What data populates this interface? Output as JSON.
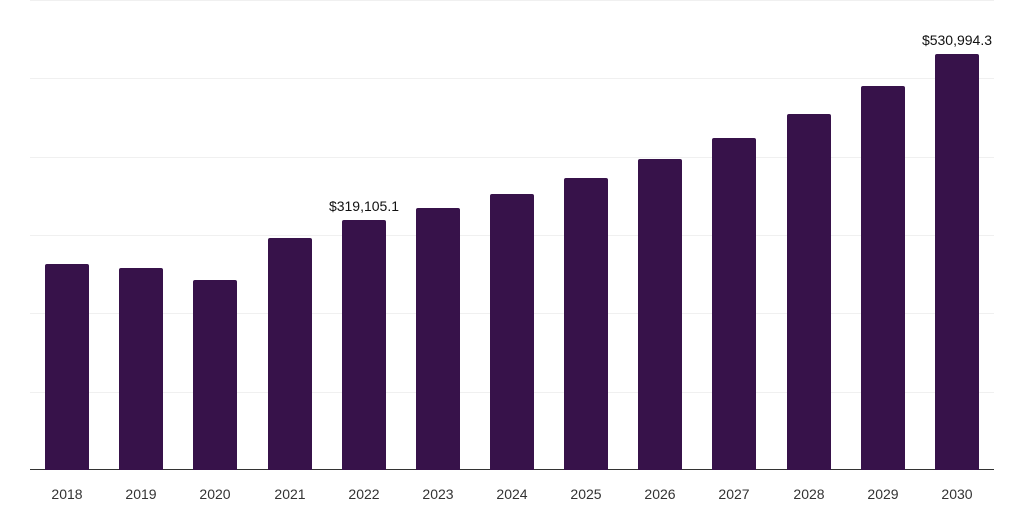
{
  "chart_data": {
    "type": "bar",
    "title": "",
    "xlabel": "",
    "ylabel": "",
    "categories": [
      "2018",
      "2019",
      "2020",
      "2021",
      "2022",
      "2023",
      "2024",
      "2025",
      "2026",
      "2027",
      "2028",
      "2029",
      "2030"
    ],
    "values": [
      263500,
      258400,
      243000,
      296800,
      319105.1,
      333900,
      351800,
      372300,
      396600,
      423500,
      454200,
      490000,
      530994.3
    ],
    "annotations": [
      {
        "category": "2022",
        "label": "$319,105.1"
      },
      {
        "category": "2030",
        "label": "$530,994.3"
      }
    ],
    "ylim": [
      0,
      600000
    ],
    "gridlines": [
      0,
      100000,
      200000,
      300000,
      400000,
      500000,
      600000
    ],
    "grid": true,
    "y_tick_labels_visible": false,
    "legend": null,
    "bar_color": "#37124a"
  }
}
